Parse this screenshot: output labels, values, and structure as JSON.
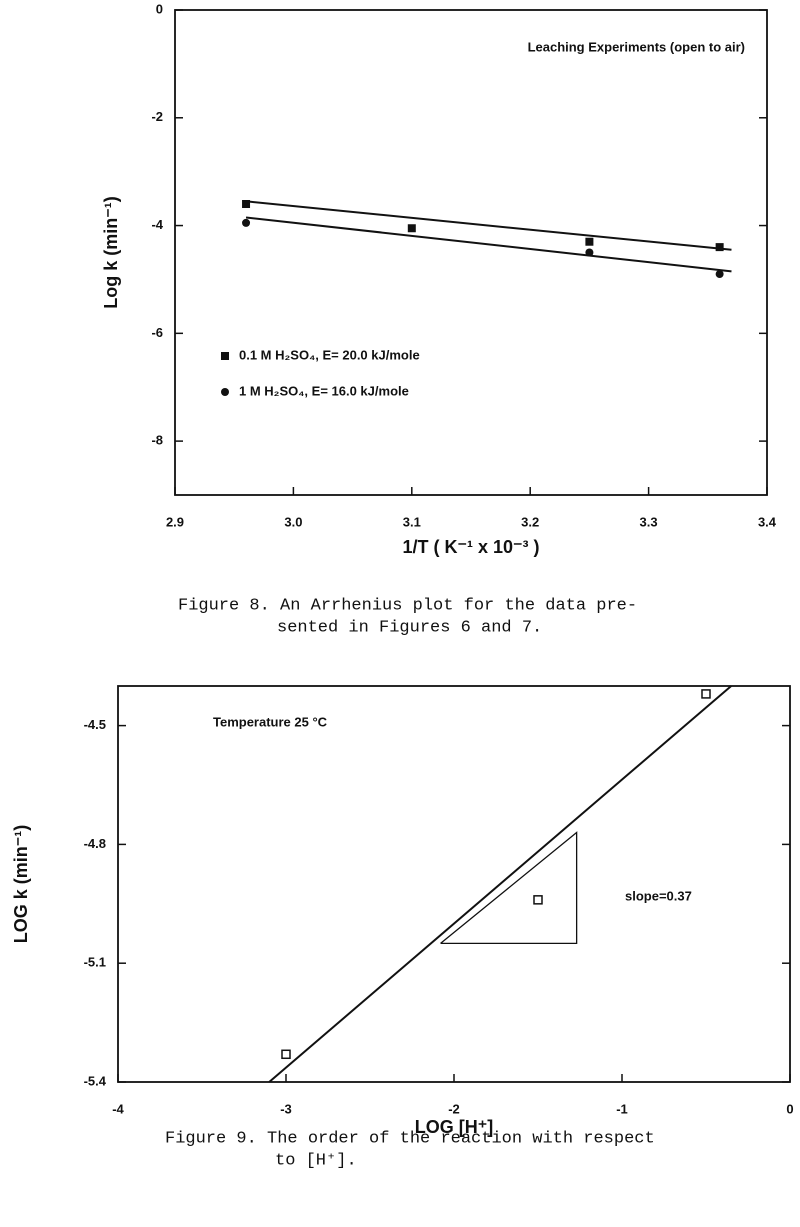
{
  "chart_data": [
    {
      "type": "scatter",
      "xlabel": "1/T ( K⁻¹ x 10⁻³ )",
      "ylabel": "Log k (min⁻¹)",
      "annotations": [
        "Leaching Experiments (open to air)"
      ],
      "caption_lines": [
        "Figure 8.  An Arrhenius plot for the data pre-",
        "sented in Figures 6 and 7."
      ],
      "xlim": [
        2.9,
        3.4
      ],
      "ylim": [
        -9,
        0
      ],
      "xticks": [
        2.9,
        {
          "value": 3,
          "label": "3.0"
        },
        3.1,
        3.2,
        3.3,
        3.4
      ],
      "yticks": [
        0,
        -2,
        -4,
        -6,
        -8
      ],
      "series": [
        {
          "name": "0.1 M H₂SO₄, E= 20.0 kJ/mole",
          "color": "#111111",
          "marker": "square",
          "x": [
            2.96,
            3.1,
            3.25,
            3.36
          ],
          "values": [
            -3.6,
            -4.05,
            -4.3,
            -4.4
          ],
          "fit": {
            "x": [
              2.96,
              3.37
            ],
            "values": [
              -3.55,
              -4.45
            ]
          }
        },
        {
          "name": "1 M H₂SO₄, E= 16.0 kJ/mole",
          "color": "#111111",
          "marker": "circle",
          "x": [
            2.96,
            3.25,
            3.36
          ],
          "values": [
            -3.95,
            -4.5,
            -4.9
          ],
          "fit": {
            "x": [
              2.96,
              3.37
            ],
            "values": [
              -3.85,
              -4.85
            ]
          }
        }
      ]
    },
    {
      "type": "scatter",
      "xlabel": "LOG [H⁺]",
      "ylabel": "LOG k (min⁻¹)",
      "annotations": [
        "Temperature 25 °C",
        "slope=0.37"
      ],
      "caption_lines": [
        "Figure 9.  The order of the reaction with respect",
        "to [H⁺]."
      ],
      "xlim": [
        -4,
        0
      ],
      "ylim": [
        -5.4,
        -4.4
      ],
      "xticks": [
        -4,
        -3,
        -2,
        -1,
        0
      ],
      "yticks": [
        -4.5,
        -4.8,
        -5.1,
        -5.4
      ],
      "series": [
        {
          "color": "#111111",
          "marker": "open-square",
          "x": [
            -3,
            -1.5,
            -0.5
          ],
          "values": [
            -5.33,
            -4.94,
            -4.42
          ],
          "fit": {
            "x": [
              -3.1,
              -0.35
            ],
            "values": [
              -5.4,
              -4.4
            ]
          }
        }
      ],
      "guide": {
        "x": [
          -2.08,
          -1.27,
          -1.27,
          -2.08
        ],
        "values": [
          -5.05,
          -5.05,
          -4.77,
          -5.05
        ]
      }
    }
  ]
}
